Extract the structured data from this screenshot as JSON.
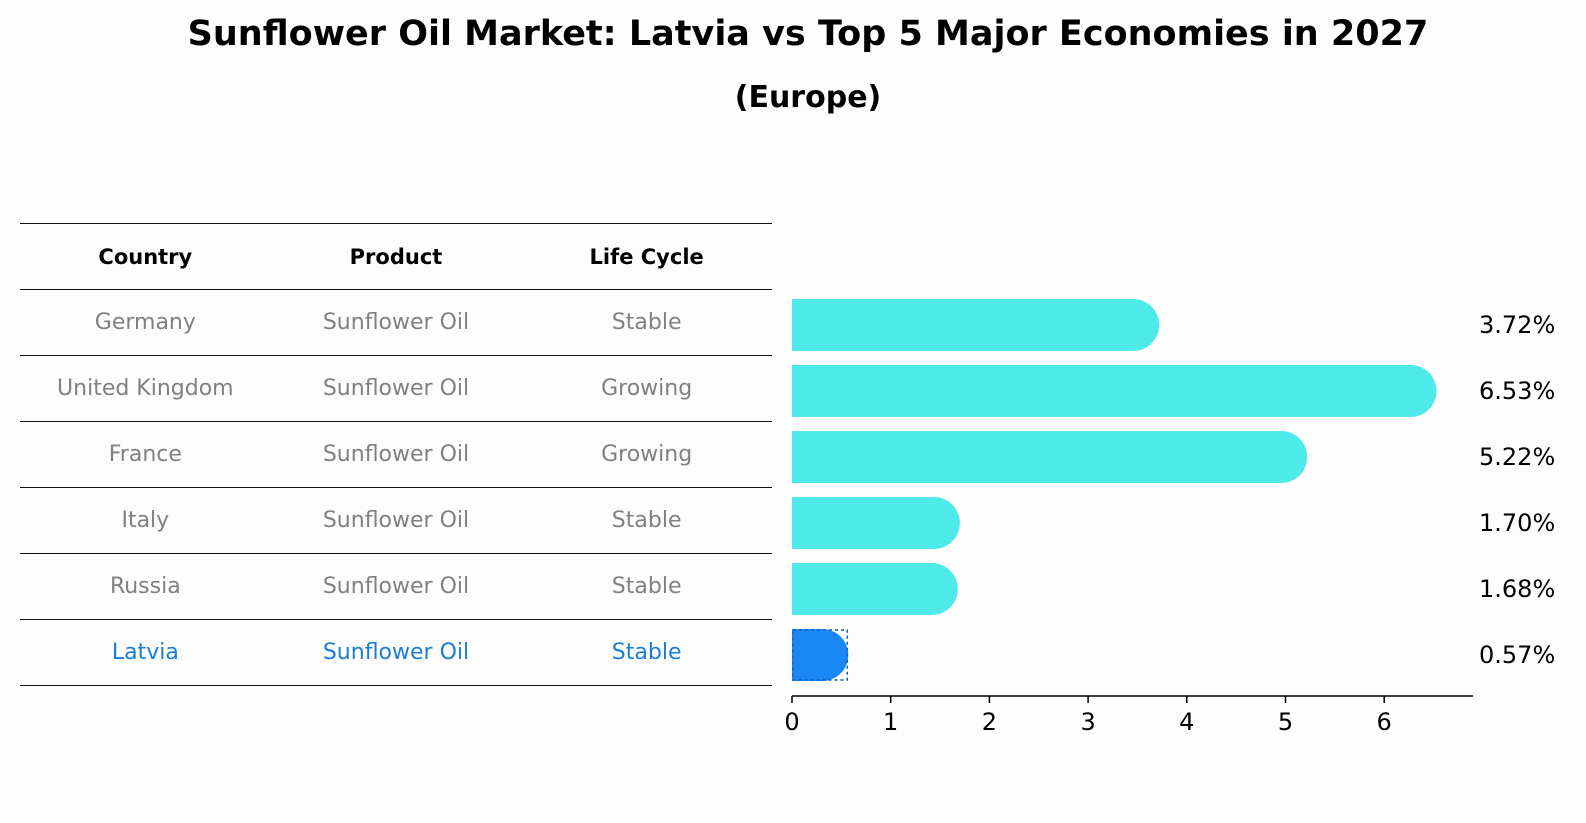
{
  "title": "Sunflower Oil Market: Latvia vs Top 5 Major Economies in 2027",
  "subtitle": "(Europe)",
  "table": {
    "headers": [
      "Country",
      "Product",
      "Life Cycle"
    ],
    "rows": [
      {
        "country": "Germany",
        "product": "Sunflower Oil",
        "life_cycle": "Stable",
        "highlight": false
      },
      {
        "country": "United Kingdom",
        "product": "Sunflower Oil",
        "life_cycle": "Growing",
        "highlight": false
      },
      {
        "country": "France",
        "product": "Sunflower Oil",
        "life_cycle": "Growing",
        "highlight": false
      },
      {
        "country": "Italy",
        "product": "Sunflower Oil",
        "life_cycle": "Stable",
        "highlight": false
      },
      {
        "country": "Russia",
        "product": "Sunflower Oil",
        "life_cycle": "Stable",
        "highlight": false
      },
      {
        "country": "Latvia",
        "product": "Sunflower Oil",
        "life_cycle": "Stable",
        "highlight": true
      }
    ]
  },
  "chart_data": {
    "type": "bar",
    "orientation": "horizontal",
    "categories": [
      "Germany",
      "United Kingdom",
      "France",
      "Italy",
      "Russia",
      "Latvia"
    ],
    "values": [
      3.72,
      6.53,
      5.22,
      1.7,
      1.68,
      0.57
    ],
    "value_labels": [
      "3.72%",
      "6.53%",
      "5.22%",
      "1.70%",
      "1.68%",
      "0.57%"
    ],
    "highlight_index": 5,
    "xlim": [
      0,
      6.9
    ],
    "xticks": [
      0,
      1,
      2,
      3,
      4,
      5,
      6
    ],
    "xlabel": "",
    "ylabel": "",
    "grid": false,
    "colors": {
      "bar": "#4eeaea",
      "highlight": "#1a87f5"
    }
  }
}
